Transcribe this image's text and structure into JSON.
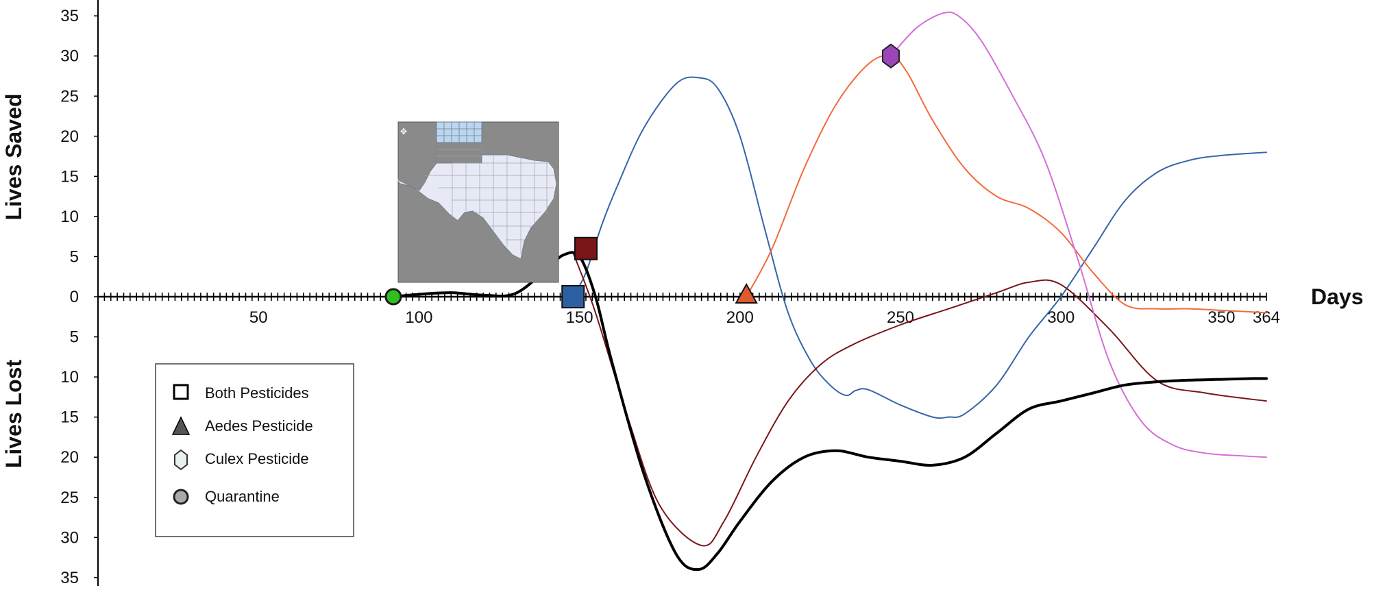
{
  "chart_data": {
    "type": "line",
    "xlabel": "Days",
    "ylabel_top": "Lives Saved",
    "ylabel_bottom": "Lives Lost",
    "xlim": [
      0,
      364
    ],
    "ylim": [
      -35,
      35
    ],
    "x_ticks": [
      50,
      100,
      150,
      200,
      250,
      300,
      350,
      364
    ],
    "y_ticks": [
      35,
      30,
      25,
      20,
      15,
      10,
      5,
      0,
      5,
      10,
      15,
      20,
      25,
      30,
      35
    ],
    "note": "",
    "legend": {
      "position": "lower-left",
      "entries": [
        {
          "label": "Both Pesticides",
          "marker": "square"
        },
        {
          "label": "Aedes Pesticide",
          "marker": "triangle"
        },
        {
          "label": "Culex Pesticide",
          "marker": "hexagon"
        },
        {
          "label": "Quarantine",
          "marker": "circle"
        }
      ]
    },
    "series": [
      {
        "color": "#000000",
        "x": [
          92,
          100,
          110,
          120,
          130,
          140,
          145,
          150,
          155,
          160,
          170,
          180,
          187,
          193,
          200,
          210,
          220,
          230,
          240,
          250,
          260,
          270,
          280,
          290,
          300,
          310,
          320,
          330,
          340,
          350,
          360,
          364
        ],
        "y": [
          0,
          0.3,
          0.5,
          0.2,
          0.4,
          3.5,
          5.2,
          5,
          0,
          -8,
          -22,
          -32,
          -34,
          -32,
          -28,
          -23,
          -20,
          -19.2,
          -20,
          -20.5,
          -21,
          -20,
          -17,
          -14,
          -13,
          -12,
          -11,
          -10.6,
          -10.4,
          -10.3,
          -10.2,
          -10.2
        ],
        "width": 4
      },
      {
        "color": "#3566a8",
        "x": [
          148,
          152,
          157,
          162,
          170,
          180,
          187,
          193,
          200,
          208,
          215,
          222,
          228,
          233,
          236,
          240,
          250,
          260,
          265,
          270,
          280,
          290,
          300,
          310,
          320,
          330,
          340,
          350,
          364
        ],
        "y": [
          0,
          3,
          9,
          14,
          21,
          26.5,
          27.3,
          26,
          20,
          8,
          -2,
          -8,
          -11,
          -12.3,
          -11.7,
          -11.6,
          -13.5,
          -15,
          -15,
          -14.6,
          -11,
          -5,
          0,
          6,
          12,
          15.5,
          17,
          17.6,
          18
        ],
        "width": 2
      },
      {
        "color": "#7a1518",
        "x": [
          148,
          155,
          165,
          175,
          188,
          195,
          205,
          215,
          225,
          235,
          250,
          265,
          280,
          290,
          300,
          315,
          330,
          345,
          364
        ],
        "y": [
          5.5,
          -2,
          -15,
          -26,
          -31,
          -28,
          -20,
          -13,
          -8.5,
          -6,
          -3.5,
          -1.5,
          0.5,
          1.8,
          1.5,
          -4,
          -10.5,
          -12,
          -13
        ],
        "width": 2
      },
      {
        "color": "#f36a3a",
        "x": [
          202,
          210,
          220,
          230,
          240,
          247,
          252,
          260,
          270,
          280,
          290,
          300,
          310,
          320,
          330,
          340,
          350,
          364
        ],
        "y": [
          0,
          6,
          16,
          24,
          29,
          30,
          28,
          22,
          16,
          12.5,
          11,
          8,
          3,
          -1,
          -1.5,
          -1.5,
          -1.7,
          -2
        ],
        "width": 2
      },
      {
        "color": "#d46ed8",
        "x": [
          247,
          255,
          263,
          268,
          275,
          285,
          295,
          305,
          315,
          325,
          335,
          345,
          355,
          364
        ],
        "y": [
          30,
          33.5,
          35.3,
          35,
          32,
          25,
          17,
          5,
          -8,
          -15.5,
          -18.5,
          -19.5,
          -19.8,
          -20
        ],
        "width": 2
      }
    ],
    "markers": [
      {
        "shape": "circle",
        "x": 92,
        "y": 0,
        "color": "#2fbf1f"
      },
      {
        "shape": "square",
        "x": 148,
        "y": 0,
        "color": "#2d5fa3"
      },
      {
        "shape": "square",
        "x": 152,
        "y": 6,
        "color": "#7a1518"
      },
      {
        "shape": "triangle",
        "x": 202,
        "y": 0,
        "color": "#e05a30"
      },
      {
        "shape": "hexagon",
        "x": 247,
        "y": 30,
        "color": "#9b45b8"
      }
    ]
  }
}
